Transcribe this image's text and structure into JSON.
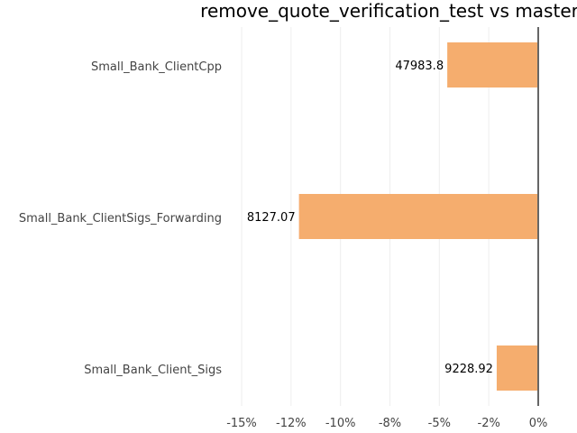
{
  "chart_data": {
    "type": "bar",
    "orientation": "horizontal",
    "title": "remove_quote_verification_test vs master",
    "xlabel": "",
    "ylabel": "",
    "categories": [
      "Small_Bank_ClientCpp",
      "Small_Bank_ClientSigs_Forwarding",
      "Small_Bank_Client_Sigs"
    ],
    "values": [
      -4.6,
      -12.1,
      -2.1
    ],
    "data_labels": [
      "47983.8",
      "8127.07",
      "9228.92"
    ],
    "xlim": [
      -15,
      0
    ],
    "x_ticks": [
      -15,
      -12.5,
      -10,
      -7.5,
      -5,
      -2.5,
      0
    ],
    "x_tick_labels": [
      "-15%",
      "-12%",
      "-10%",
      "-8%",
      "-5%",
      "-2%",
      "0%"
    ],
    "grid": true,
    "bar_color": "#f5ad6e",
    "zero_line_color": "#666666",
    "grid_color": "#eeeeee"
  }
}
